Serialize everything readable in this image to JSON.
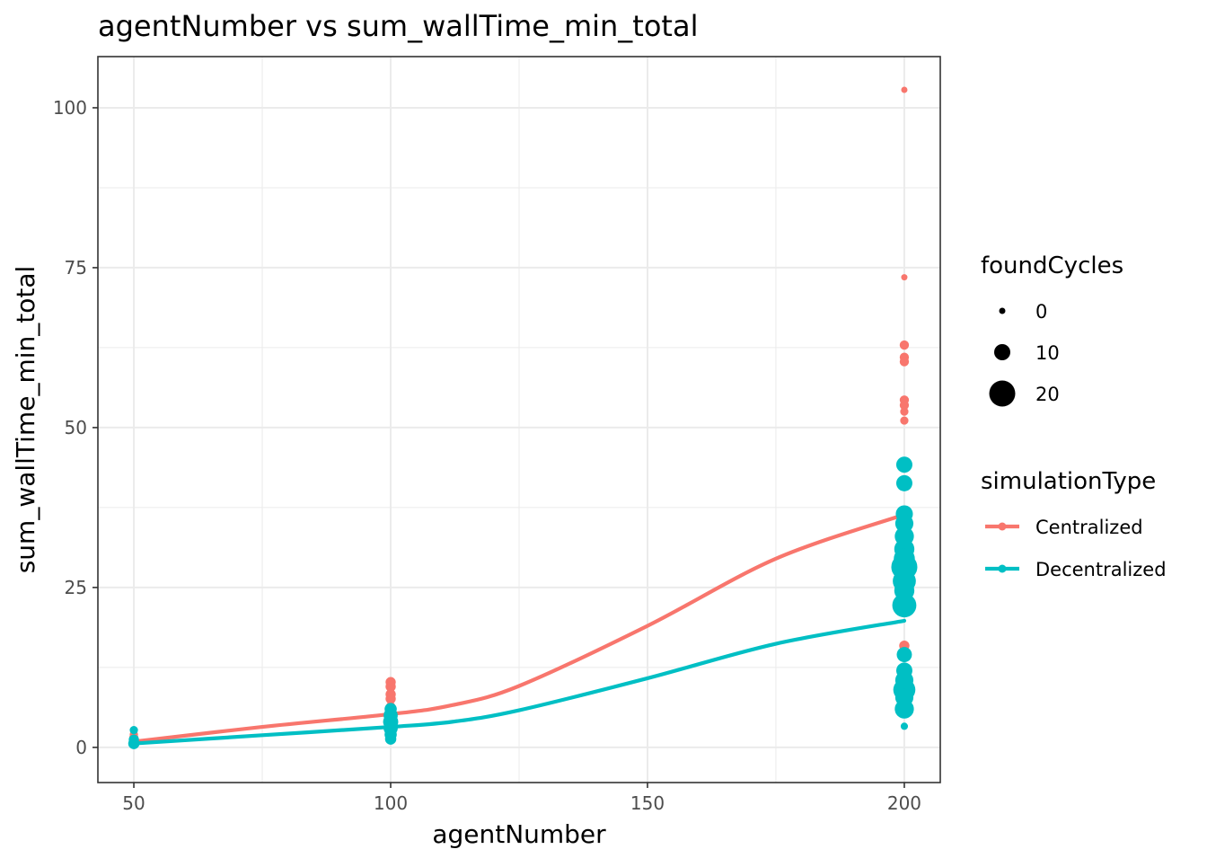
{
  "chart_data": {
    "type": "scatter",
    "title": "agentNumber  vs  sum_wallTime_min_total",
    "xlabel": "agentNumber",
    "ylabel": "sum_wallTime_min_total",
    "xlim": [
      43,
      207
    ],
    "ylim": [
      -5.5,
      108
    ],
    "x_ticks": [
      50,
      100,
      150,
      200
    ],
    "x_tick_labels": [
      "50",
      "100",
      "150",
      "200"
    ],
    "y_ticks": [
      0,
      25,
      50,
      75,
      100
    ],
    "y_tick_labels": [
      "0",
      "25",
      "50",
      "75",
      "100"
    ],
    "grid": true,
    "colors": {
      "Centralized": "#F8766D",
      "Decentralized": "#00BFC4",
      "panel_border": "#333333",
      "grid": "#ebebeb"
    },
    "size_legend": {
      "title": "foundCycles",
      "entries": [
        {
          "label": "0",
          "value": 0
        },
        {
          "label": "10",
          "value": 10
        },
        {
          "label": "20",
          "value": 20
        }
      ]
    },
    "color_legend": {
      "title": "simulationType",
      "entries": [
        {
          "label": "Centralized",
          "series": "Centralized"
        },
        {
          "label": "Decentralized",
          "series": "Decentralized"
        }
      ]
    },
    "legend_placement": "right",
    "series": [
      {
        "name": "Centralized",
        "points": [
          {
            "x": 50,
            "y": 1.0,
            "size": 2
          },
          {
            "x": 50,
            "y": 1.5,
            "size": 3
          },
          {
            "x": 50,
            "y": 2.0,
            "size": 2
          },
          {
            "x": 100,
            "y": 10.2,
            "size": 4
          },
          {
            "x": 100,
            "y": 9.5,
            "size": 4
          },
          {
            "x": 100,
            "y": 8.3,
            "size": 4
          },
          {
            "x": 100,
            "y": 7.6,
            "size": 4
          },
          {
            "x": 100,
            "y": 6.4,
            "size": 3
          },
          {
            "x": 100,
            "y": 5.5,
            "size": 3
          },
          {
            "x": 200,
            "y": 102.8,
            "size": 0
          },
          {
            "x": 200,
            "y": 73.5,
            "size": 0
          },
          {
            "x": 200,
            "y": 62.9,
            "size": 3
          },
          {
            "x": 200,
            "y": 61.0,
            "size": 3
          },
          {
            "x": 200,
            "y": 60.3,
            "size": 3
          },
          {
            "x": 200,
            "y": 54.3,
            "size": 3
          },
          {
            "x": 200,
            "y": 53.5,
            "size": 3
          },
          {
            "x": 200,
            "y": 52.5,
            "size": 2
          },
          {
            "x": 200,
            "y": 51.1,
            "size": 2
          },
          {
            "x": 200,
            "y": 15.9,
            "size": 4
          },
          {
            "x": 200,
            "y": 15.0,
            "size": 3
          }
        ],
        "smooth": [
          {
            "x": 50,
            "y": 0.9
          },
          {
            "x": 75,
            "y": 3.2
          },
          {
            "x": 100,
            "y": 5.2
          },
          {
            "x": 112,
            "y": 6.6
          },
          {
            "x": 125,
            "y": 9.6
          },
          {
            "x": 150,
            "y": 19.0
          },
          {
            "x": 175,
            "y": 29.5
          },
          {
            "x": 200,
            "y": 36.4
          }
        ]
      },
      {
        "name": "Decentralized",
        "points": [
          {
            "x": 50,
            "y": 2.7,
            "size": 2
          },
          {
            "x": 50,
            "y": 1.2,
            "size": 4
          },
          {
            "x": 50,
            "y": 0.6,
            "size": 5
          },
          {
            "x": 100,
            "y": 6.0,
            "size": 6
          },
          {
            "x": 100,
            "y": 5.0,
            "size": 8
          },
          {
            "x": 100,
            "y": 4.0,
            "size": 9
          },
          {
            "x": 100,
            "y": 3.0,
            "size": 8
          },
          {
            "x": 100,
            "y": 2.0,
            "size": 6
          },
          {
            "x": 100,
            "y": 1.3,
            "size": 5
          },
          {
            "x": 200,
            "y": 44.2,
            "size": 10
          },
          {
            "x": 200,
            "y": 41.3,
            "size": 10
          },
          {
            "x": 200,
            "y": 36.5,
            "size": 11
          },
          {
            "x": 200,
            "y": 35.0,
            "size": 12
          },
          {
            "x": 200,
            "y": 33.0,
            "size": 13
          },
          {
            "x": 200,
            "y": 31.0,
            "size": 14
          },
          {
            "x": 200,
            "y": 29.5,
            "size": 15
          },
          {
            "x": 200,
            "y": 28.2,
            "size": 20
          },
          {
            "x": 200,
            "y": 26.0,
            "size": 17
          },
          {
            "x": 200,
            "y": 24.5,
            "size": 14
          },
          {
            "x": 200,
            "y": 22.2,
            "size": 18
          },
          {
            "x": 200,
            "y": 14.5,
            "size": 9
          },
          {
            "x": 200,
            "y": 12.0,
            "size": 10
          },
          {
            "x": 200,
            "y": 10.5,
            "size": 12
          },
          {
            "x": 200,
            "y": 9.0,
            "size": 16
          },
          {
            "x": 200,
            "y": 7.8,
            "size": 12
          },
          {
            "x": 200,
            "y": 6.0,
            "size": 13
          },
          {
            "x": 200,
            "y": 3.3,
            "size": 1
          }
        ],
        "smooth": [
          {
            "x": 50,
            "y": 0.6
          },
          {
            "x": 75,
            "y": 1.9
          },
          {
            "x": 100,
            "y": 3.2
          },
          {
            "x": 112,
            "y": 4.0
          },
          {
            "x": 125,
            "y": 5.8
          },
          {
            "x": 150,
            "y": 10.8
          },
          {
            "x": 175,
            "y": 16.2
          },
          {
            "x": 200,
            "y": 19.8
          }
        ]
      }
    ]
  }
}
